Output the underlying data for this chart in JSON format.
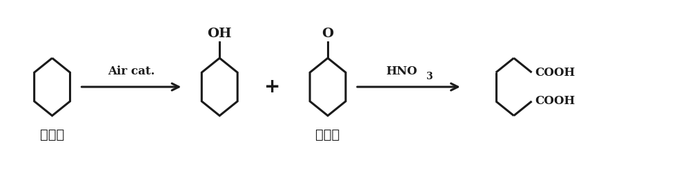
{
  "background_color": "#ffffff",
  "line_color": "#1a1a1a",
  "line_width": 2.2,
  "text_color": "#1a1a1a",
  "step1_label": "第一步",
  "step2_label": "第二步",
  "air_cat_label": "Air cat.",
  "hno3_label": "HNO",
  "hno3_sub": "3",
  "oh_label": "OH",
  "o_label": "O",
  "cooh1_label": "COOH",
  "cooh2_label": "COOH",
  "plus_label": "+",
  "fig_width": 10.0,
  "fig_height": 2.48
}
